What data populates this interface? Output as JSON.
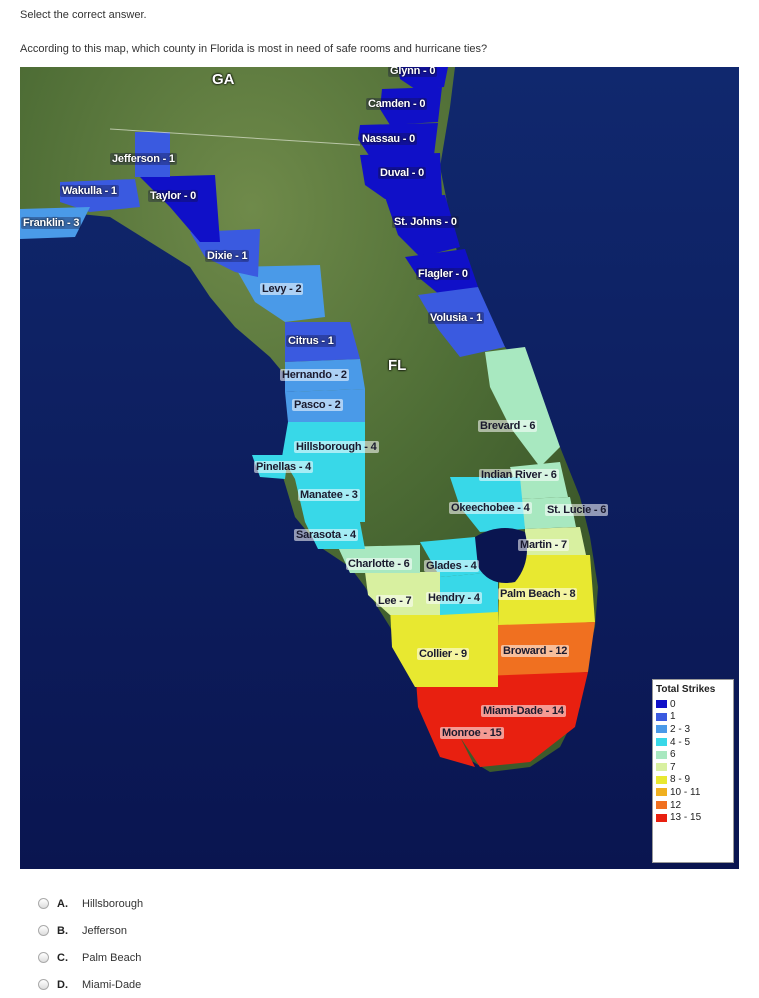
{
  "instruction": "Select the correct answer.",
  "question": "According to this map, which county in Florida is most in need of safe rooms and hurricane ties?",
  "map": {
    "state_labels": [
      "GA",
      "FL"
    ],
    "counties": [
      {
        "label": "Glynn - 0"
      },
      {
        "label": "Camden - 0"
      },
      {
        "label": "Nassau - 0"
      },
      {
        "label": "Duval - 0"
      },
      {
        "label": "St. Johns - 0"
      },
      {
        "label": "Flagler - 0"
      },
      {
        "label": "Volusia - 1"
      },
      {
        "label": "Jefferson - 1"
      },
      {
        "label": "Wakulla - 1"
      },
      {
        "label": "Taylor - 0"
      },
      {
        "label": "Franklin - 3"
      },
      {
        "label": "Dixie - 1"
      },
      {
        "label": "Levy - 2"
      },
      {
        "label": "Citrus - 1"
      },
      {
        "label": "Hernando - 2"
      },
      {
        "label": "Pasco - 2"
      },
      {
        "label": "Hillsborough - 4"
      },
      {
        "label": "Pinellas - 4"
      },
      {
        "label": "Manatee - 3"
      },
      {
        "label": "Sarasota - 4"
      },
      {
        "label": "Charlotte - 6"
      },
      {
        "label": "Glades - 4"
      },
      {
        "label": "Lee - 7"
      },
      {
        "label": "Hendry - 4"
      },
      {
        "label": "Palm Beach - 8"
      },
      {
        "label": "Collier - 9"
      },
      {
        "label": "Broward - 12"
      },
      {
        "label": "Miami-Dade - 14"
      },
      {
        "label": "Monroe - 15"
      },
      {
        "label": "Brevard - 6"
      },
      {
        "label": "Indian River - 6"
      },
      {
        "label": "Okeechobee - 4"
      },
      {
        "label": "St. Lucie - 6"
      },
      {
        "label": "Martin - 7"
      }
    ],
    "legend": {
      "title": "Total Strikes",
      "items": [
        {
          "label": "0",
          "color": "#1010c8"
        },
        {
          "label": "1",
          "color": "#3a5ae0"
        },
        {
          "label": "2 - 3",
          "color": "#4a9ae8"
        },
        {
          "label": "4 - 5",
          "color": "#38d8e8"
        },
        {
          "label": "6",
          "color": "#a8e8c0"
        },
        {
          "label": "7",
          "color": "#d8f0a0"
        },
        {
          "label": "8 - 9",
          "color": "#e8e830"
        },
        {
          "label": "10 - 11",
          "color": "#f0b020"
        },
        {
          "label": "12",
          "color": "#f07020"
        },
        {
          "label": "13 - 15",
          "color": "#e82010"
        }
      ]
    }
  },
  "choices": [
    {
      "letter": "A.",
      "text": "Hillsborough"
    },
    {
      "letter": "B.",
      "text": "Jefferson"
    },
    {
      "letter": "C.",
      "text": "Palm Beach"
    },
    {
      "letter": "D.",
      "text": "Miami-Dade"
    }
  ]
}
